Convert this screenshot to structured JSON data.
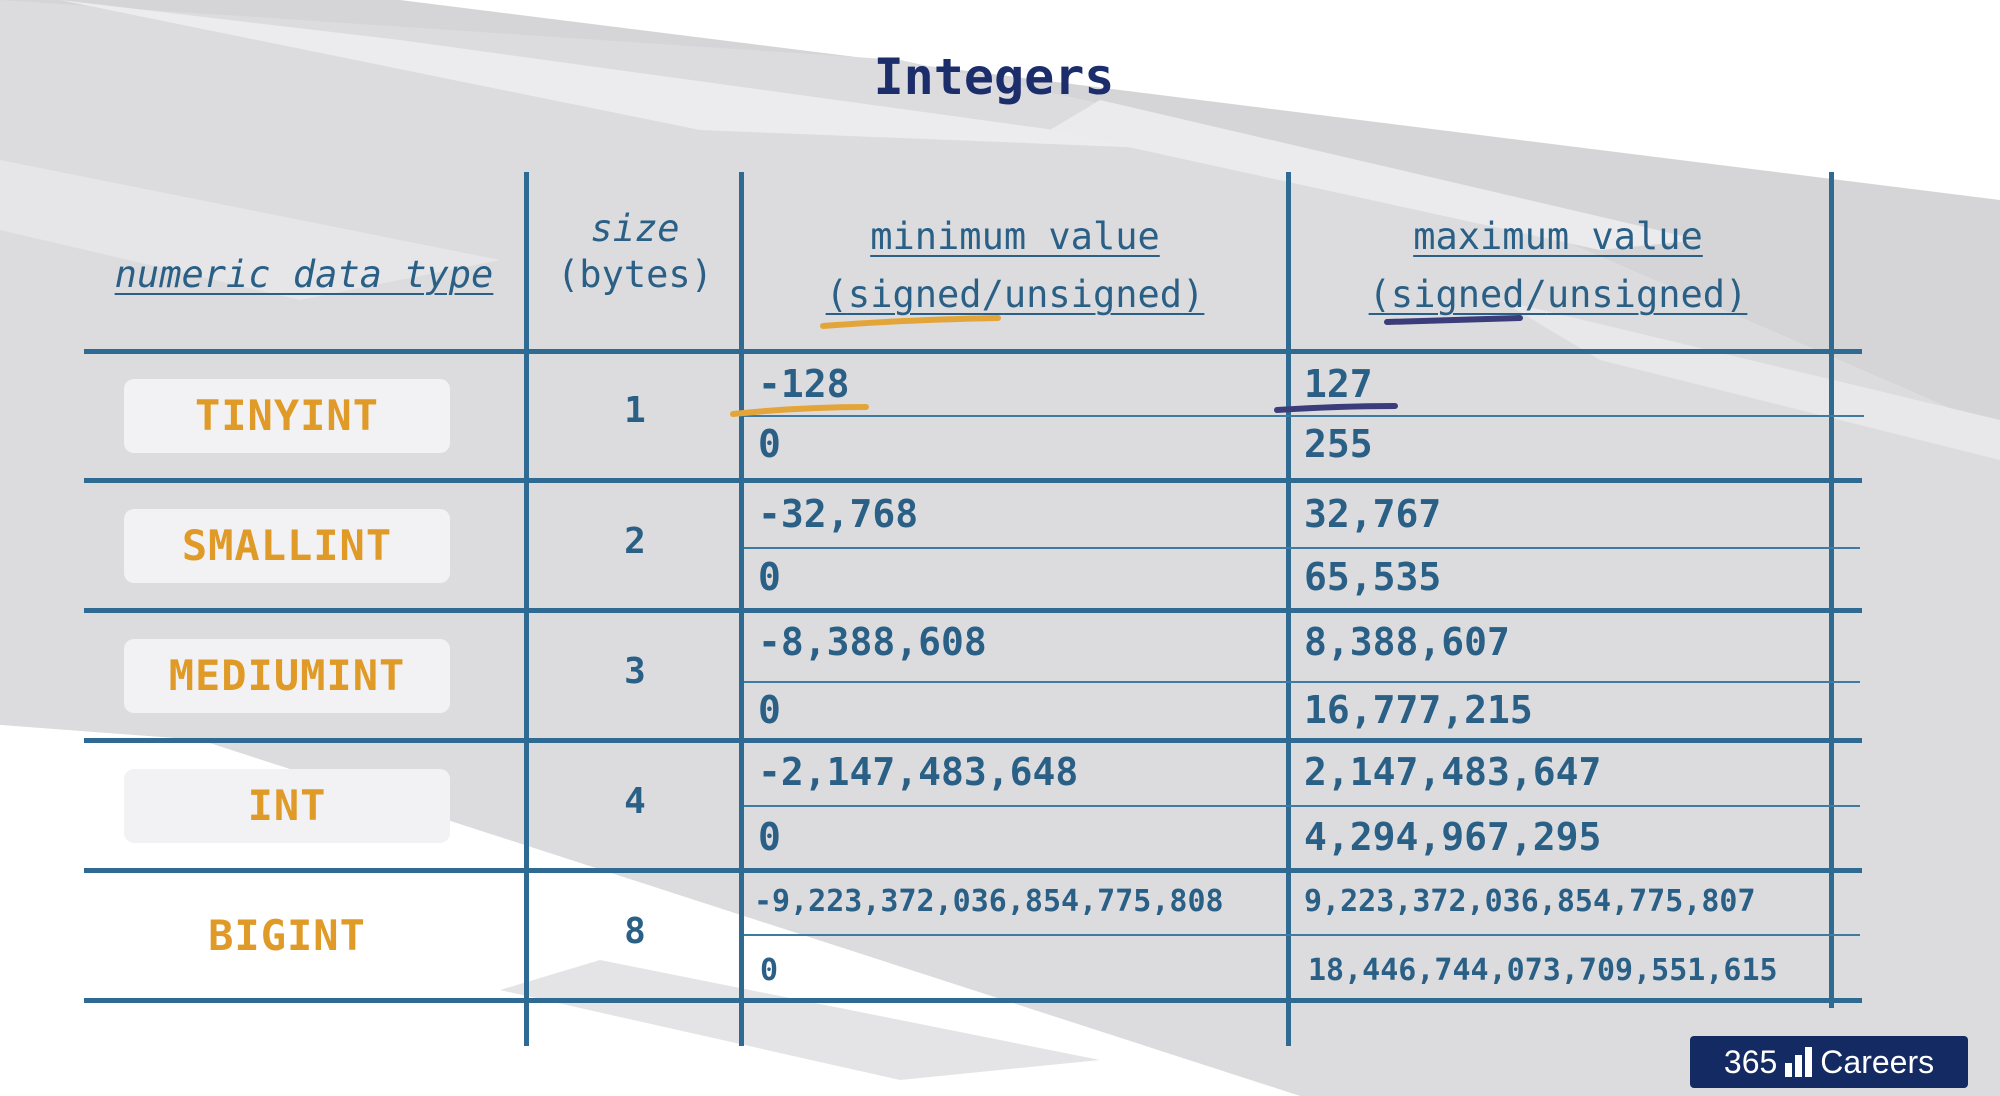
{
  "title": "Integers",
  "headers": {
    "type": "numeric data type",
    "size_line1": "size",
    "size_line2": "(bytes)",
    "min_line1": "minimum value",
    "min_signed": "signed",
    "min_unsigned": "unsigned",
    "max_line1": "maximum value",
    "max_signed": "signed",
    "max_unsigned": "unsigned"
  },
  "rows": [
    {
      "type": "TINYINT",
      "size": "1",
      "min_signed": "-128",
      "min_unsigned": "0",
      "max_signed": "127",
      "max_unsigned": "255"
    },
    {
      "type": "SMALLINT",
      "size": "2",
      "min_signed": "-32,768",
      "min_unsigned": "0",
      "max_signed": "32,767",
      "max_unsigned": "65,535"
    },
    {
      "type": "MEDIUMINT",
      "size": "3",
      "min_signed": "-8,388,608",
      "min_unsigned": "0",
      "max_signed": "8,388,607",
      "max_unsigned": "16,777,215"
    },
    {
      "type": "INT",
      "size": "4",
      "min_signed": "-2,147,483,648",
      "min_unsigned": "0",
      "max_signed": "2,147,483,647",
      "max_unsigned": "4,294,967,295"
    },
    {
      "type": "BIGINT",
      "size": "8",
      "min_signed": "-9,223,372,036,854,775,808",
      "min_unsigned": "0",
      "max_signed": "9,223,372,036,854,775,807",
      "max_unsigned": "18,446,744,073,709,551,615"
    }
  ],
  "logo": {
    "num": "365",
    "word": "Careers"
  },
  "colors": {
    "line": "#2f6a92",
    "text": "#2a5f86",
    "type": "#e09a27",
    "title": "#1b2d6b",
    "highlight_orange": "#e3a53a",
    "highlight_navy": "#3a3d7a"
  }
}
